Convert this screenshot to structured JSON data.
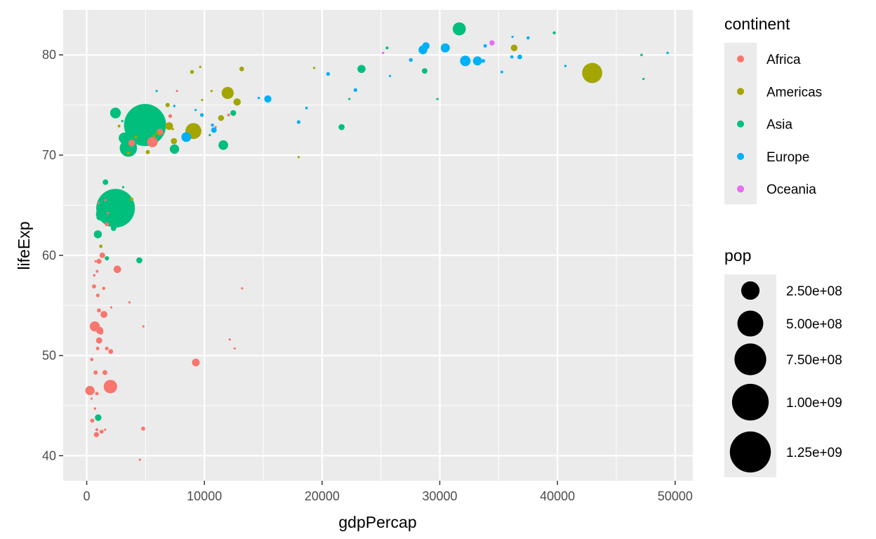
{
  "chart_data": {
    "type": "scatter",
    "title": "",
    "xlabel": "gdpPercap",
    "ylabel": "lifeExp",
    "xlim": [
      -2000,
      51500
    ],
    "ylim": [
      37.5,
      84.5
    ],
    "x_ticks": [
      0,
      10000,
      20000,
      30000,
      40000,
      50000
    ],
    "x_tick_labels": [
      "0",
      "10000",
      "20000",
      "30000",
      "40000",
      "50000"
    ],
    "y_ticks": [
      40,
      50,
      60,
      70,
      80
    ],
    "y_tick_labels": [
      "40",
      "50",
      "60",
      "70",
      "80"
    ],
    "grid": true,
    "legend_position": "right",
    "color_legend": {
      "title": "continent",
      "items": [
        {
          "label": "Africa",
          "color": "#F8766D"
        },
        {
          "label": "Americas",
          "color": "#A3A500"
        },
        {
          "label": "Asia",
          "color": "#00BF7D"
        },
        {
          "label": "Europe",
          "color": "#00B0F6"
        },
        {
          "label": "Oceania",
          "color": "#E76BF3"
        }
      ]
    },
    "size_legend": {
      "title": "pop",
      "items": [
        {
          "label": "2.50e+08",
          "value": 250000000
        },
        {
          "label": "5.00e+08",
          "value": 500000000
        },
        {
          "label": "7.50e+08",
          "value": 750000000
        },
        {
          "label": "1.00e+09",
          "value": 1000000000
        },
        {
          "label": "1.25e+09",
          "value": 1250000000
        }
      ]
    },
    "series": [
      {
        "name": "Africa",
        "points": [
          [
            6223,
            72.3,
            33000000
          ],
          [
            4797,
            42.7,
            12000000
          ],
          [
            1441,
            56.7,
            8000000
          ],
          [
            12570,
            50.7,
            1600000
          ],
          [
            1217,
            52.3,
            14000000
          ],
          [
            430,
            49.6,
            8400000
          ],
          [
            2042,
            50.4,
            17000000
          ],
          [
            706,
            44.7,
            4400000
          ],
          [
            1704,
            50.7,
            10000000
          ],
          [
            986,
            65.2,
            700000
          ],
          [
            278,
            46.5,
            64000000
          ],
          [
            3633,
            55.3,
            3800000
          ],
          [
            1544,
            48.3,
            18000000
          ],
          [
            2082,
            54.8,
            500000
          ],
          [
            5581,
            71.3,
            80000000
          ],
          [
            12154,
            51.6,
            550000
          ],
          [
            642,
            58.0,
            4900000
          ],
          [
            690,
            52.9,
            76000000
          ],
          [
            13206,
            56.7,
            1450000
          ],
          [
            753,
            59.4,
            1700000
          ],
          [
            1327,
            60.0,
            23000000
          ],
          [
            943,
            56.0,
            9900000
          ],
          [
            579,
            46.4,
            1500000
          ],
          [
            1463,
            54.1,
            35000000
          ],
          [
            1569,
            42.6,
            2000000
          ],
          [
            415,
            45.7,
            3200000
          ],
          [
            12057,
            74.0,
            6000000
          ],
          [
            1045,
            59.4,
            19000000
          ],
          [
            759,
            48.3,
            13300000
          ],
          [
            1042,
            54.5,
            12000000
          ],
          [
            1803,
            64.2,
            3300000
          ],
          [
            10957,
            72.8,
            1250000
          ],
          [
            3820,
            71.2,
            33700000
          ],
          [
            824,
            42.1,
            20000000
          ],
          [
            4811,
            52.9,
            2100000
          ],
          [
            620,
            56.9,
            12900000
          ],
          [
            2014,
            46.9,
            135000000
          ],
          [
            7670,
            76.4,
            800000
          ],
          [
            863,
            46.2,
            8900000
          ],
          [
            1598,
            65.5,
            200000
          ],
          [
            1712,
            63.1,
            12300000
          ],
          [
            862,
            42.6,
            6100000
          ],
          [
            926,
            50.7,
            9100000
          ],
          [
            9270,
            49.3,
            44000000
          ],
          [
            2602,
            58.6,
            42000000
          ],
          [
            4513,
            39.6,
            1100000
          ],
          [
            1107,
            52.5,
            38000000
          ],
          [
            883,
            58.4,
            5700000
          ],
          [
            7093,
            73.9,
            10300000
          ],
          [
            1056,
            51.5,
            29000000
          ],
          [
            1271,
            42.4,
            11700000
          ],
          [
            470,
            43.5,
            12300000
          ]
        ]
      },
      {
        "name": "Americas",
        "points": [
          [
            12779,
            75.3,
            40000000
          ],
          [
            3822,
            65.6,
            9100000
          ],
          [
            9066,
            72.4,
            190000000
          ],
          [
            36319,
            80.7,
            33000000
          ],
          [
            13172,
            78.6,
            16000000
          ],
          [
            7007,
            72.9,
            44000000
          ],
          [
            9645,
            78.8,
            4100000
          ],
          [
            8948,
            78.3,
            11400000
          ],
          [
            6025,
            72.2,
            9300000
          ],
          [
            6873,
            75.0,
            13800000
          ],
          [
            5728,
            71.9,
            6900000
          ],
          [
            5186,
            70.3,
            12600000
          ],
          [
            1202,
            60.9,
            8500000
          ],
          [
            3548,
            70.2,
            7500000
          ],
          [
            7321,
            72.6,
            2800000
          ],
          [
            11978,
            76.2,
            108000000
          ],
          [
            2749,
            72.9,
            5700000
          ],
          [
            9809,
            75.5,
            3200000
          ],
          [
            4173,
            71.8,
            6700000
          ],
          [
            7409,
            71.4,
            28700000
          ],
          [
            19329,
            78.7,
            3900000
          ],
          [
            18009,
            69.8,
            1100000
          ],
          [
            42952,
            78.2,
            301000000
          ],
          [
            10611,
            76.4,
            3400000
          ],
          [
            11416,
            73.7,
            26000000
          ]
        ]
      },
      {
        "name": "Asia",
        "points": [
          [
            975,
            43.8,
            31900000
          ],
          [
            29796,
            75.6,
            700000
          ],
          [
            1391,
            64.1,
            150000000
          ],
          [
            1714,
            59.7,
            14100000
          ],
          [
            4959,
            73.0,
            1318000000
          ],
          [
            39725,
            82.2,
            6900000
          ],
          [
            2452,
            64.7,
            1110000000
          ],
          [
            3541,
            70.7,
            223000000
          ],
          [
            11606,
            71.0,
            69500000
          ],
          [
            4471,
            59.5,
            27500000
          ],
          [
            25523,
            80.7,
            6400000
          ],
          [
            31656,
            82.6,
            127000000
          ],
          [
            4519,
            72.5,
            6000000
          ],
          [
            1593,
            67.3,
            23300000
          ],
          [
            23348,
            78.6,
            49000000
          ],
          [
            47307,
            77.6,
            2500000
          ],
          [
            10461,
            72.0,
            3900000
          ],
          [
            12452,
            74.2,
            24800000
          ],
          [
            3096,
            66.8,
            2900000
          ],
          [
            944,
            62.1,
            47800000
          ],
          [
            1091,
            63.8,
            28900000
          ],
          [
            22316,
            75.6,
            3200000
          ],
          [
            2606,
            65.5,
            169000000
          ],
          [
            3190,
            71.7,
            91000000
          ],
          [
            21655,
            72.8,
            27600000
          ],
          [
            47143,
            80.0,
            4600000
          ],
          [
            3970,
            72.4,
            20400000
          ],
          [
            4185,
            74.2,
            85000000
          ],
          [
            7458,
            70.6,
            65000000
          ],
          [
            2442,
            74.2,
            85300000
          ],
          [
            3026,
            73.4,
            4000000
          ],
          [
            2281,
            62.7,
            22200000
          ],
          [
            28718,
            78.4,
            23200000
          ]
        ]
      },
      {
        "name": "Europe",
        "points": [
          [
            5937,
            76.4,
            3600000
          ],
          [
            36126,
            79.8,
            8200000
          ],
          [
            33693,
            79.4,
            10400000
          ],
          [
            7446,
            74.9,
            4600000
          ],
          [
            10681,
            73.0,
            7300000
          ],
          [
            14619,
            75.7,
            4500000
          ],
          [
            22833,
            76.5,
            10200000
          ],
          [
            35278,
            78.3,
            5500000
          ],
          [
            33207,
            79.3,
            5200000
          ],
          [
            30470,
            80.7,
            61000000
          ],
          [
            32170,
            79.4,
            82400000
          ],
          [
            27538,
            79.5,
            10700000
          ],
          [
            18009,
            73.3,
            9900000
          ],
          [
            36181,
            81.8,
            300000
          ],
          [
            40676,
            78.9,
            4100000
          ],
          [
            28570,
            80.5,
            58100000
          ],
          [
            9254,
            74.5,
            700000
          ],
          [
            36798,
            79.8,
            16600000
          ],
          [
            49357,
            80.2,
            4600000
          ],
          [
            15390,
            75.6,
            38500000
          ],
          [
            20510,
            78.1,
            10600000
          ],
          [
            10808,
            72.5,
            22300000
          ],
          [
            9787,
            74.0,
            10200000
          ],
          [
            18678,
            74.7,
            5400000
          ],
          [
            25768,
            77.9,
            2000000
          ],
          [
            28821,
            80.9,
            40400000
          ],
          [
            33860,
            80.9,
            9000000
          ],
          [
            37506,
            81.7,
            7500000
          ],
          [
            8458,
            71.8,
            71200000
          ],
          [
            33203,
            79.4,
            60800000
          ]
        ]
      },
      {
        "name": "Oceania",
        "points": [
          [
            34435,
            81.2,
            20400000
          ],
          [
            25185,
            80.2,
            4100000
          ]
        ]
      }
    ]
  }
}
